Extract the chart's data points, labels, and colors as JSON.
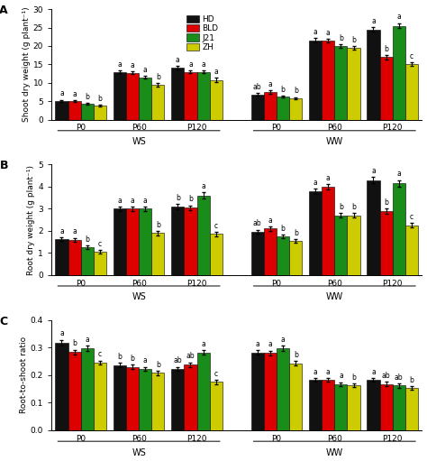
{
  "panel_A": {
    "title": "A",
    "ylabel": "Shoot dry weight (g plant⁻¹)",
    "ylim": [
      0,
      30
    ],
    "yticks": [
      0,
      5,
      10,
      15,
      20,
      25,
      30
    ],
    "groups": [
      "P0",
      "P60",
      "P120",
      "P0",
      "P60",
      "P120"
    ],
    "values": {
      "HD": [
        5.1,
        13.0,
        14.0,
        6.8,
        21.5,
        24.5
      ],
      "BLD": [
        5.0,
        12.7,
        13.0,
        7.5,
        21.5,
        17.0
      ],
      "J21": [
        4.3,
        11.5,
        13.0,
        6.2,
        20.0,
        25.5
      ],
      "ZH": [
        3.8,
        9.5,
        10.8,
        5.8,
        19.5,
        15.0
      ]
    },
    "errors": {
      "HD": [
        0.3,
        0.4,
        0.5,
        0.4,
        0.6,
        0.7
      ],
      "BLD": [
        0.3,
        0.4,
        0.4,
        0.4,
        0.5,
        0.6
      ],
      "J21": [
        0.3,
        0.4,
        0.4,
        0.3,
        0.5,
        0.7
      ],
      "ZH": [
        0.3,
        0.5,
        0.6,
        0.3,
        0.5,
        0.5
      ]
    },
    "sig_labels": {
      "HD": [
        "a",
        "a",
        "a",
        "ab",
        "a",
        "a"
      ],
      "BLD": [
        "a",
        "a",
        "a",
        "a",
        "a",
        "b"
      ],
      "J21": [
        "b",
        "a",
        "a",
        "b",
        "b",
        "a"
      ],
      "ZH": [
        "b",
        "b",
        "a",
        "b",
        "b",
        "c"
      ]
    }
  },
  "panel_B": {
    "title": "B",
    "ylabel": "Root dry weight (g plant⁻¹)",
    "ylim": [
      0,
      5
    ],
    "yticks": [
      0,
      1,
      2,
      3,
      4,
      5
    ],
    "groups": [
      "P0",
      "P60",
      "P120",
      "P0",
      "P60",
      "P120"
    ],
    "values": {
      "HD": [
        1.62,
        3.0,
        3.1,
        1.95,
        3.8,
        4.3
      ],
      "BLD": [
        1.6,
        3.0,
        3.05,
        2.1,
        4.0,
        2.9
      ],
      "J21": [
        1.25,
        3.0,
        3.6,
        1.75,
        2.7,
        4.15
      ],
      "ZH": [
        1.05,
        1.9,
        1.85,
        1.55,
        2.7,
        2.25
      ]
    },
    "errors": {
      "HD": [
        0.08,
        0.1,
        0.12,
        0.1,
        0.12,
        0.15
      ],
      "BLD": [
        0.08,
        0.1,
        0.1,
        0.1,
        0.12,
        0.12
      ],
      "J21": [
        0.07,
        0.1,
        0.15,
        0.09,
        0.1,
        0.15
      ],
      "ZH": [
        0.07,
        0.1,
        0.1,
        0.08,
        0.1,
        0.1
      ]
    },
    "sig_labels": {
      "HD": [
        "a",
        "a",
        "b",
        "ab",
        "a",
        "a"
      ],
      "BLD": [
        "a",
        "a",
        "b",
        "a",
        "a",
        "b"
      ],
      "J21": [
        "b",
        "a",
        "a",
        "b",
        "b",
        "a"
      ],
      "ZH": [
        "c",
        "b",
        "c",
        "b",
        "b",
        "c"
      ]
    }
  },
  "panel_C": {
    "title": "C",
    "ylabel": "Root-to-shoot ratio",
    "ylim": [
      0.0,
      0.4
    ],
    "yticks": [
      0.0,
      0.1,
      0.2,
      0.3,
      0.4
    ],
    "groups": [
      "P0",
      "P60",
      "P120",
      "P0",
      "P60",
      "P120"
    ],
    "values": {
      "HD": [
        0.318,
        0.236,
        0.222,
        0.282,
        0.183,
        0.183
      ],
      "BLD": [
        0.283,
        0.23,
        0.238,
        0.28,
        0.183,
        0.168
      ],
      "J21": [
        0.298,
        0.222,
        0.282,
        0.297,
        0.167,
        0.162
      ],
      "ZH": [
        0.245,
        0.208,
        0.175,
        0.243,
        0.163,
        0.153
      ]
    },
    "errors": {
      "HD": [
        0.01,
        0.008,
        0.008,
        0.009,
        0.007,
        0.007
      ],
      "BLD": [
        0.009,
        0.008,
        0.008,
        0.009,
        0.007,
        0.007
      ],
      "J21": [
        0.009,
        0.008,
        0.009,
        0.009,
        0.007,
        0.007
      ],
      "ZH": [
        0.008,
        0.008,
        0.008,
        0.008,
        0.007,
        0.007
      ]
    },
    "sig_labels": {
      "HD": [
        "a",
        "b",
        "ab",
        "a",
        "a",
        "a"
      ],
      "BLD": [
        "b",
        "b",
        "ab",
        "a",
        "a",
        "ab"
      ],
      "J21": [
        "a",
        "a",
        "a",
        "a",
        "a",
        "ab"
      ],
      "ZH": [
        "c",
        "b",
        "c",
        "b",
        "b",
        "b"
      ]
    }
  },
  "colors": {
    "HD": "#111111",
    "BLD": "#dd0000",
    "J21": "#1a8c1a",
    "ZH": "#cccc00"
  },
  "varieties": [
    "HD",
    "BLD",
    "J21",
    "ZH"
  ],
  "legend_labels": [
    "HD",
    "BLD",
    "J21",
    "ZH"
  ]
}
